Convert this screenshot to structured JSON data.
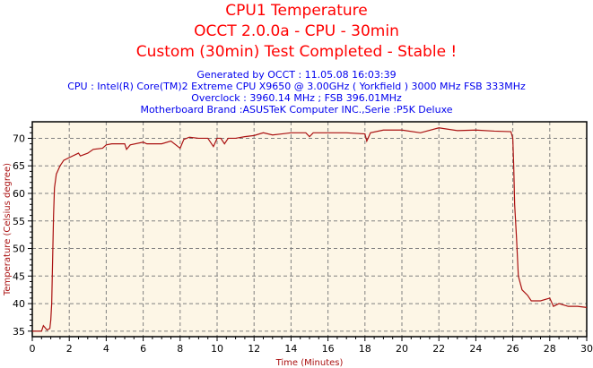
{
  "chart_data": {
    "type": "line",
    "title": [
      "CPU1 Temperature",
      "OCCT 2.0.0a - CPU - 30min",
      "Custom (30min) Test Completed - Stable !"
    ],
    "subtitle": [
      "Generated by OCCT : 11.05.08 16:03:39",
      "CPU : Intel(R) Core(TM)2 Extreme CPU X9650 @ 3.00GHz ( Yorkfield ) 3000 MHz FSB 333MHz",
      "Overclock : 3960.14 MHz ; FSB 396.01MHz",
      "Motherboard Brand :ASUSTeK Computer INC.,Serie :P5K Deluxe"
    ],
    "xlabel": "Time (Minutes)",
    "ylabel": "Temperature (Celsius degree)",
    "xlim": [
      0,
      30
    ],
    "ylim": [
      34,
      73
    ],
    "xticks": [
      0,
      2,
      4,
      6,
      8,
      10,
      12,
      14,
      16,
      18,
      20,
      22,
      24,
      26,
      28,
      30
    ],
    "yticks": [
      35,
      40,
      45,
      50,
      55,
      60,
      65,
      70
    ],
    "grid": true,
    "colors": {
      "line": "#aa1111",
      "plot_bg": "#fdf6e6",
      "title": "#ff0000",
      "subtitle": "#0000ee",
      "axis_label": "#aa1111"
    },
    "x": [
      0,
      0.5,
      0.6,
      0.8,
      0.95,
      1.0,
      1.05,
      1.1,
      1.15,
      1.2,
      1.3,
      1.5,
      1.7,
      2,
      2.5,
      2.6,
      3,
      3.3,
      3.8,
      4,
      4.3,
      5,
      5.1,
      5.3,
      6,
      6.2,
      7,
      7.5,
      8,
      8.2,
      8.5,
      9,
      9.5,
      9.8,
      10,
      10.2,
      10.4,
      10.6,
      11,
      11.5,
      12,
      12.5,
      13,
      13.5,
      14,
      14.8,
      15,
      15.2,
      16,
      17,
      18,
      18.1,
      18.3,
      19,
      20,
      21,
      22,
      23,
      24,
      25,
      25.9,
      26,
      26.05,
      26.1,
      26.2,
      26.3,
      26.5,
      26.8,
      27,
      27.5,
      28,
      28.2,
      28.5,
      29,
      29.5,
      30
    ],
    "y": [
      35,
      35,
      36,
      35.2,
      35.5,
      37,
      40,
      48,
      56,
      61,
      63.5,
      65,
      66,
      66.5,
      67.3,
      66.8,
      67.3,
      68,
      68.2,
      68.8,
      69,
      69,
      68,
      68.8,
      69.3,
      69,
      69,
      69.5,
      68.2,
      69.8,
      70.2,
      70,
      70,
      68.5,
      70,
      70,
      69,
      70,
      70,
      70.3,
      70.5,
      71,
      70.6,
      70.8,
      71,
      71,
      70.3,
      71,
      71,
      71,
      70.8,
      69.5,
      71,
      71.5,
      71.5,
      71,
      71.9,
      71.4,
      71.5,
      71.3,
      71.2,
      70,
      65,
      58,
      52,
      45,
      42.5,
      41.5,
      40.5,
      40.5,
      41,
      39.5,
      40,
      39.5,
      39.5,
      39.3
    ]
  }
}
